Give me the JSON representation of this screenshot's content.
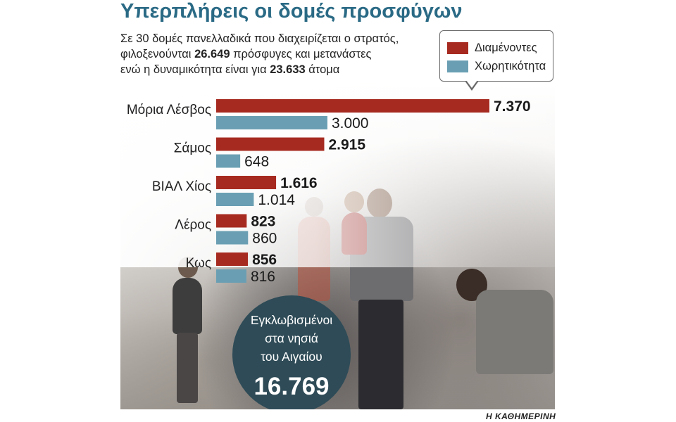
{
  "title": "Υπερπλήρεις οι δομές προσφύγων",
  "subtitle": {
    "line1": "Σε 30 δομές πανελλαδικά που διαχειρίζεται ο στρατός,",
    "line2_pre": "φιλοξενούνται ",
    "line2_bold": "26.649",
    "line2_post": " πρόσφυγες και μετανάστες",
    "line3_pre": "ενώ η δυναμικότητα είναι για ",
    "line3_bold": "23.633",
    "line3_post": " άτομα"
  },
  "legend": {
    "items": [
      {
        "label": "Διαμένοντες",
        "color": "#a72a20"
      },
      {
        "label": "Χωρητικότητα",
        "color": "#6a9fb3"
      }
    ]
  },
  "chart_data": {
    "type": "bar",
    "orientation": "horizontal",
    "categories": [
      "Μόρια Λέσβος",
      "Σάμος",
      "ΒΙΑΛ Χίος",
      "Λέρος",
      "Κως"
    ],
    "series": [
      {
        "name": "Διαμένοντες",
        "values": [
          7370,
          2915,
          1616,
          823,
          856
        ],
        "labels": [
          "7.370",
          "2.915",
          "1.616",
          "823",
          "856"
        ],
        "color": "#a72a20"
      },
      {
        "name": "Χωρητικότητα",
        "values": [
          3000,
          648,
          1014,
          860,
          816
        ],
        "labels": [
          "3.000",
          "648",
          "1.014",
          "860",
          "816"
        ],
        "color": "#6a9fb3"
      }
    ]
  },
  "callout": {
    "line1": "Εγκλωβισμένοι",
    "line2": "στα νησιά",
    "line3": "του Αιγαίου",
    "number": "16.769"
  },
  "source": "Η ΚΑΘΗΜΕΡΙΝΗ"
}
